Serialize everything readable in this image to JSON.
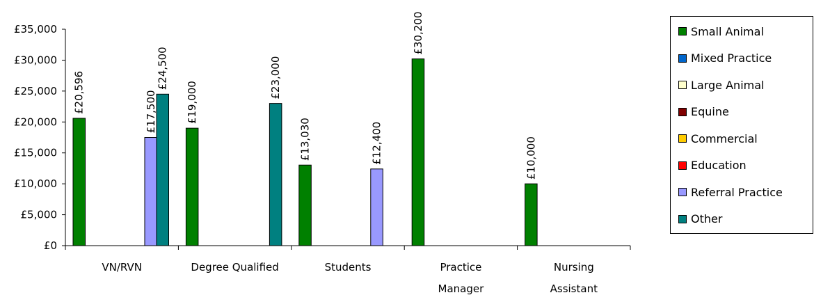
{
  "chart_data": {
    "type": "bar",
    "title": "",
    "xlabel": "",
    "ylabel": "",
    "ylim": [
      0,
      35000
    ],
    "ytick_values": [
      0,
      5000,
      10000,
      15000,
      20000,
      25000,
      30000,
      35000
    ],
    "ytick_labels": [
      "£0",
      "£5,000",
      "£10,000",
      "£15,000",
      "£20,000",
      "£25,000",
      "£30,000",
      "£35,000"
    ],
    "categories": [
      [
        "VN/RVN"
      ],
      [
        "Degree Qualified"
      ],
      [
        "Students"
      ],
      [
        "Practice",
        "Manager"
      ],
      [
        "Nursing",
        "Assistant"
      ]
    ],
    "legend_position": "right",
    "series": [
      {
        "name": "Small Animal",
        "color": "#008000",
        "values": [
          20596,
          19000,
          13030,
          30200,
          10000
        ],
        "labels": [
          "£20,596",
          "£19,000",
          "£13,030",
          "£30,200",
          "£10,000"
        ]
      },
      {
        "name": "Mixed Practice",
        "color": "#0066CC",
        "values": [
          null,
          null,
          null,
          null,
          null
        ],
        "labels": [
          null,
          null,
          null,
          null,
          null
        ]
      },
      {
        "name": "Large Animal",
        "color": "#FFFFCC",
        "values": [
          null,
          null,
          null,
          null,
          null
        ],
        "labels": [
          null,
          null,
          null,
          null,
          null
        ]
      },
      {
        "name": "Equine",
        "color": "#800000",
        "values": [
          null,
          null,
          null,
          null,
          null
        ],
        "labels": [
          null,
          null,
          null,
          null,
          null
        ]
      },
      {
        "name": "Commercial",
        "color": "#FFCC00",
        "values": [
          null,
          null,
          null,
          null,
          null
        ],
        "labels": [
          null,
          null,
          null,
          null,
          null
        ]
      },
      {
        "name": "Education",
        "color": "#FF0000",
        "values": [
          null,
          null,
          null,
          null,
          null
        ],
        "labels": [
          null,
          null,
          null,
          null,
          null
        ]
      },
      {
        "name": "Referral Practice",
        "color": "#9999FF",
        "values": [
          17500,
          null,
          12400,
          null,
          null
        ],
        "labels": [
          "£17,500",
          null,
          "£12,400",
          null,
          null
        ]
      },
      {
        "name": "Other",
        "color": "#008080",
        "values": [
          24500,
          23000,
          null,
          null,
          null
        ],
        "labels": [
          "£24,500",
          "£23,000",
          null,
          null,
          null
        ]
      }
    ]
  }
}
